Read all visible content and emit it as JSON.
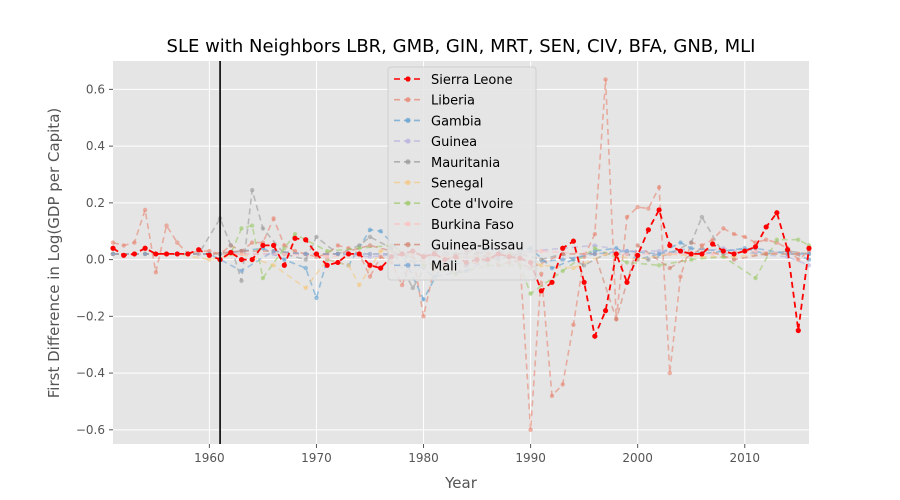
{
  "chart_data": {
    "type": "line",
    "title": "SLE with Neighbors LBR, GMB, GIN, MRT, SEN, CIV, BFA, GNB, MLI",
    "xlabel": "Year",
    "ylabel": "First Difference in Log(GDP per Capita)",
    "xlim": [
      1951,
      2016
    ],
    "ylim": [
      -0.65,
      0.7
    ],
    "xticks": [
      1960,
      1970,
      1980,
      1990,
      2000,
      2010
    ],
    "yticks": [
      -0.6,
      -0.4,
      -0.2,
      0.0,
      0.2,
      0.4,
      0.6
    ],
    "xtick_labels": [
      "1960",
      "1970",
      "1980",
      "1990",
      "2000",
      "2010"
    ],
    "ytick_labels": [
      "−0.6",
      "−0.4",
      "−0.2",
      "0.0",
      "0.2",
      "0.4",
      "0.6"
    ],
    "grid": true,
    "legend_position": "upper-center",
    "vertical_line": {
      "x": 1961,
      "color": "#000000"
    },
    "background": "#e5e5e5",
    "series": [
      {
        "name": "Sierra Leone",
        "color": "#ff0000",
        "emphasis": true,
        "x": [
          1951,
          1952,
          1953,
          1954,
          1955,
          1956,
          1957,
          1958,
          1959,
          1960,
          1961,
          1962,
          1963,
          1964,
          1965,
          1966,
          1967,
          1968,
          1969,
          1970,
          1971,
          1972,
          1973,
          1974,
          1975,
          1976,
          1977,
          1978,
          1979,
          1980,
          1981,
          1982,
          1983,
          1984,
          1985,
          1986,
          1987,
          1988,
          1989,
          1990,
          1991,
          1992,
          1993,
          1994,
          1995,
          1996,
          1997,
          1998,
          1999,
          2000,
          2001,
          2002,
          2003,
          2004,
          2005,
          2006,
          2007,
          2008,
          2009,
          2010,
          2011,
          2012,
          2013,
          2014,
          2015,
          2016
        ],
        "y": [
          0.04,
          0.015,
          0.02,
          0.04,
          0.02,
          0.02,
          0.02,
          0.02,
          0.035,
          0.015,
          0.0,
          0.025,
          0.0,
          0.0,
          0.05,
          0.05,
          -0.02,
          0.075,
          0.07,
          0.02,
          -0.02,
          -0.01,
          0.02,
          0.02,
          -0.02,
          -0.03,
          0.01,
          0.02,
          0.03,
          0.01,
          0.02,
          0.0,
          0.01,
          -0.01,
          0.0,
          0.0,
          0.02,
          0.01,
          0.005,
          -0.01,
          -0.11,
          -0.08,
          0.04,
          0.065,
          -0.08,
          -0.27,
          -0.18,
          0.02,
          -0.08,
          0.015,
          0.105,
          0.175,
          0.05,
          0.03,
          0.02,
          0.02,
          0.055,
          0.03,
          0.02,
          0.03,
          0.045,
          0.115,
          0.165,
          0.035,
          -0.25,
          0.04
        ]
      },
      {
        "name": "Liberia",
        "color": "#e8836f",
        "x": [
          1951,
          1952,
          1953,
          1954,
          1955,
          1956,
          1957,
          1958,
          1959,
          1960,
          1961,
          1962,
          1963,
          1964,
          1965,
          1966,
          1967,
          1968,
          1969,
          1970,
          1971,
          1972,
          1973,
          1974,
          1975,
          1976,
          1977,
          1978,
          1979,
          1980,
          1981,
          1982,
          1983,
          1984,
          1985,
          1986,
          1987,
          1988,
          1989,
          1990,
          1991,
          1992,
          1993,
          1994,
          1995,
          1996,
          1997,
          1998,
          1999,
          2000,
          2001,
          2002,
          2003,
          2004,
          2005,
          2006,
          2007,
          2008,
          2009,
          2010,
          2011,
          2012,
          2013,
          2014,
          2015,
          2016
        ],
        "y": [
          0.06,
          0.05,
          0.06,
          0.175,
          -0.045,
          0.12,
          0.06,
          0.02,
          0.03,
          0.03,
          0.02,
          0.05,
          0.03,
          0.06,
          0.06,
          0.145,
          0.05,
          0.03,
          0.02,
          0.01,
          0.02,
          0.05,
          0.04,
          0.02,
          -0.06,
          0.01,
          -0.01,
          -0.09,
          0.02,
          -0.2,
          -0.03,
          -0.02,
          -0.05,
          -0.02,
          -0.01,
          0.02,
          -0.02,
          -0.01,
          0.0,
          -0.6,
          -0.05,
          -0.48,
          -0.44,
          -0.23,
          0.01,
          0.09,
          0.635,
          -0.21,
          0.15,
          0.185,
          0.18,
          0.255,
          -0.4,
          -0.06,
          0.06,
          0.05,
          0.07,
          0.11,
          0.09,
          0.08,
          0.06,
          0.07,
          0.06,
          0.04,
          0.0,
          0.03
        ]
      },
      {
        "name": "Gambia",
        "color": "#5fa0d0",
        "x": [
          1951,
          1953,
          1955,
          1957,
          1959,
          1961,
          1963,
          1965,
          1967,
          1969,
          1970,
          1971,
          1973,
          1975,
          1976,
          1978,
          1980,
          1982,
          1984,
          1986,
          1988,
          1990,
          1992,
          1994,
          1996,
          1998,
          2000,
          2002,
          2004,
          2006,
          2008,
          2010,
          2012,
          2014,
          2016
        ],
        "y": [
          0.02,
          0.02,
          0.02,
          0.02,
          0.02,
          0.02,
          0.03,
          0.04,
          0.0,
          -0.03,
          -0.135,
          0.0,
          -0.02,
          0.105,
          0.1,
          0.02,
          -0.14,
          0.0,
          -0.02,
          0.04,
          0.02,
          0.04,
          -0.03,
          0.0,
          0.03,
          0.04,
          0.0,
          0.02,
          0.06,
          0.02,
          0.03,
          0.04,
          0.02,
          0.03,
          0.0
        ]
      },
      {
        "name": "Guinea",
        "color": "#b8b0e0",
        "x": [
          1951,
          1954,
          1957,
          1960,
          1963,
          1966,
          1969,
          1972,
          1975,
          1978,
          1981,
          1984,
          1987,
          1990,
          1993,
          1996,
          1999,
          2002,
          2005,
          2008,
          2011,
          2014,
          2016
        ],
        "y": [
          0.02,
          0.02,
          0.02,
          0.02,
          0.02,
          0.02,
          0.02,
          0.02,
          0.01,
          0.02,
          0.02,
          0.01,
          0.01,
          0.03,
          0.04,
          0.05,
          0.03,
          0.03,
          0.02,
          0.04,
          0.02,
          0.01,
          -0.02
        ]
      },
      {
        "name": "Mauritania",
        "color": "#999999",
        "x": [
          1951,
          1953,
          1955,
          1957,
          1959,
          1961,
          1962,
          1963,
          1964,
          1965,
          1967,
          1969,
          1970,
          1972,
          1974,
          1975,
          1977,
          1979,
          1981,
          1983,
          1985,
          1987,
          1989,
          1991,
          1993,
          1995,
          1997,
          1999,
          2001,
          2003,
          2005,
          2006,
          2008,
          2010,
          2012,
          2014,
          2016
        ],
        "y": [
          0.02,
          0.02,
          0.02,
          0.02,
          0.02,
          0.145,
          0.05,
          -0.075,
          0.245,
          0.11,
          0.02,
          0.0,
          0.08,
          0.02,
          0.05,
          0.08,
          0.04,
          -0.1,
          0.03,
          0.02,
          0.02,
          0.0,
          0.02,
          0.0,
          0.02,
          -0.02,
          0.02,
          0.02,
          0.0,
          0.02,
          0.06,
          0.15,
          0.02,
          0.03,
          0.02,
          0.03,
          0.02
        ]
      },
      {
        "name": "Senegal",
        "color": "#f5c880",
        "x": [
          1951,
          1954,
          1957,
          1960,
          1963,
          1966,
          1969,
          1971,
          1973,
          1974,
          1976,
          1979,
          1982,
          1985,
          1988,
          1991,
          1994,
          1997,
          2000,
          2003,
          2006,
          2009,
          2012,
          2015
        ],
        "y": [
          0.02,
          0.02,
          0.02,
          0.0,
          0.02,
          -0.02,
          -0.1,
          0.0,
          -0.02,
          -0.09,
          0.03,
          0.02,
          0.01,
          0.01,
          0.02,
          -0.02,
          -0.03,
          0.02,
          0.0,
          0.02,
          0.01,
          0.01,
          0.02,
          0.02
        ]
      },
      {
        "name": "Cote d'Ivoire",
        "color": "#9dc96a",
        "x": [
          1951,
          1954,
          1957,
          1960,
          1962,
          1963,
          1964,
          1965,
          1967,
          1968,
          1971,
          1974,
          1977,
          1980,
          1983,
          1986,
          1989,
          1990,
          1993,
          1996,
          1999,
          2002,
          2005,
          2008,
          2011,
          2013,
          2015,
          2016
        ],
        "y": [
          0.02,
          0.02,
          0.02,
          0.02,
          0.02,
          0.11,
          0.12,
          -0.065,
          0.04,
          0.09,
          0.03,
          0.04,
          0.05,
          -0.02,
          -0.05,
          -0.02,
          -0.02,
          -0.12,
          -0.04,
          0.04,
          -0.01,
          -0.02,
          0.0,
          0.01,
          -0.065,
          0.07,
          0.07,
          0.05
        ]
      },
      {
        "name": "Burkina Faso",
        "color": "#ffc0c0",
        "x": [
          1951,
          1955,
          1959,
          1963,
          1967,
          1971,
          1975,
          1979,
          1983,
          1987,
          1991,
          1995,
          1999,
          2003,
          2007,
          2011,
          2015
        ],
        "y": [
          0.02,
          0.02,
          0.02,
          0.02,
          0.02,
          0.01,
          0.02,
          0.02,
          0.01,
          0.02,
          0.03,
          0.02,
          0.02,
          0.02,
          0.02,
          0.03,
          0.02
        ]
      },
      {
        "name": "Guinea-Bissau",
        "color": "#d48470",
        "x": [
          1951,
          1954,
          1957,
          1960,
          1963,
          1966,
          1969,
          1972,
          1975,
          1978,
          1981,
          1984,
          1987,
          1990,
          1993,
          1996,
          1998,
          2000,
          2003,
          2006,
          2009,
          2012,
          2015
        ],
        "y": [
          0.02,
          0.02,
          0.02,
          0.02,
          0.03,
          0.03,
          0.02,
          0.02,
          0.05,
          0.02,
          -0.02,
          0.03,
          0.02,
          -0.03,
          0.02,
          0.02,
          -0.21,
          0.05,
          -0.03,
          0.04,
          0.0,
          0.02,
          0.02
        ]
      },
      {
        "name": "Mali",
        "color": "#7aa6d4",
        "x": [
          1951,
          1954,
          1957,
          1960,
          1963,
          1966,
          1969,
          1972,
          1975,
          1978,
          1981,
          1984,
          1987,
          1990,
          1993,
          1996,
          1999,
          2002,
          2005,
          2008,
          2011,
          2014,
          2016
        ],
        "y": [
          0.02,
          0.02,
          0.02,
          0.02,
          -0.04,
          0.03,
          0.02,
          0.02,
          0.02,
          0.02,
          -0.06,
          -0.04,
          0.02,
          -0.01,
          0.0,
          0.02,
          0.03,
          0.02,
          0.04,
          0.03,
          0.04,
          0.02,
          0.02
        ]
      }
    ]
  }
}
